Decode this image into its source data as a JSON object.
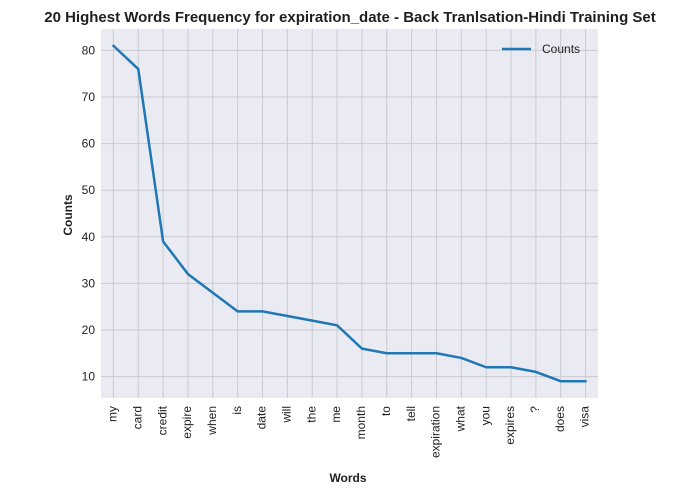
{
  "chart_data": {
    "type": "line",
    "title": "20 Highest Words Frequency for expiration_date - Back Tranlsation-Hindi Training Set",
    "xlabel": "Words",
    "ylabel": "Counts",
    "categories": [
      "my",
      "card",
      "credit",
      "expire",
      "when",
      "is",
      "date",
      "will",
      "the",
      "me",
      "month",
      "to",
      "tell",
      "expiration",
      "what",
      "you",
      "expires",
      "?",
      "does",
      "visa"
    ],
    "series": [
      {
        "name": "Counts",
        "values": [
          81,
          76,
          39,
          32,
          28,
          24,
          24,
          23,
          22,
          21,
          16,
          15,
          15,
          15,
          14,
          12,
          12,
          11,
          9,
          9
        ]
      }
    ],
    "ylim": [
      5.4,
      84.6
    ],
    "yticks": [
      10,
      20,
      30,
      40,
      50,
      60,
      70,
      80
    ],
    "grid": true,
    "legend_position": "top-right",
    "colors": {
      "line": "#1f77b4",
      "plot_background": "#eaeaf2",
      "grid": "#c9c9cf",
      "text": "#1f1f1f"
    }
  }
}
